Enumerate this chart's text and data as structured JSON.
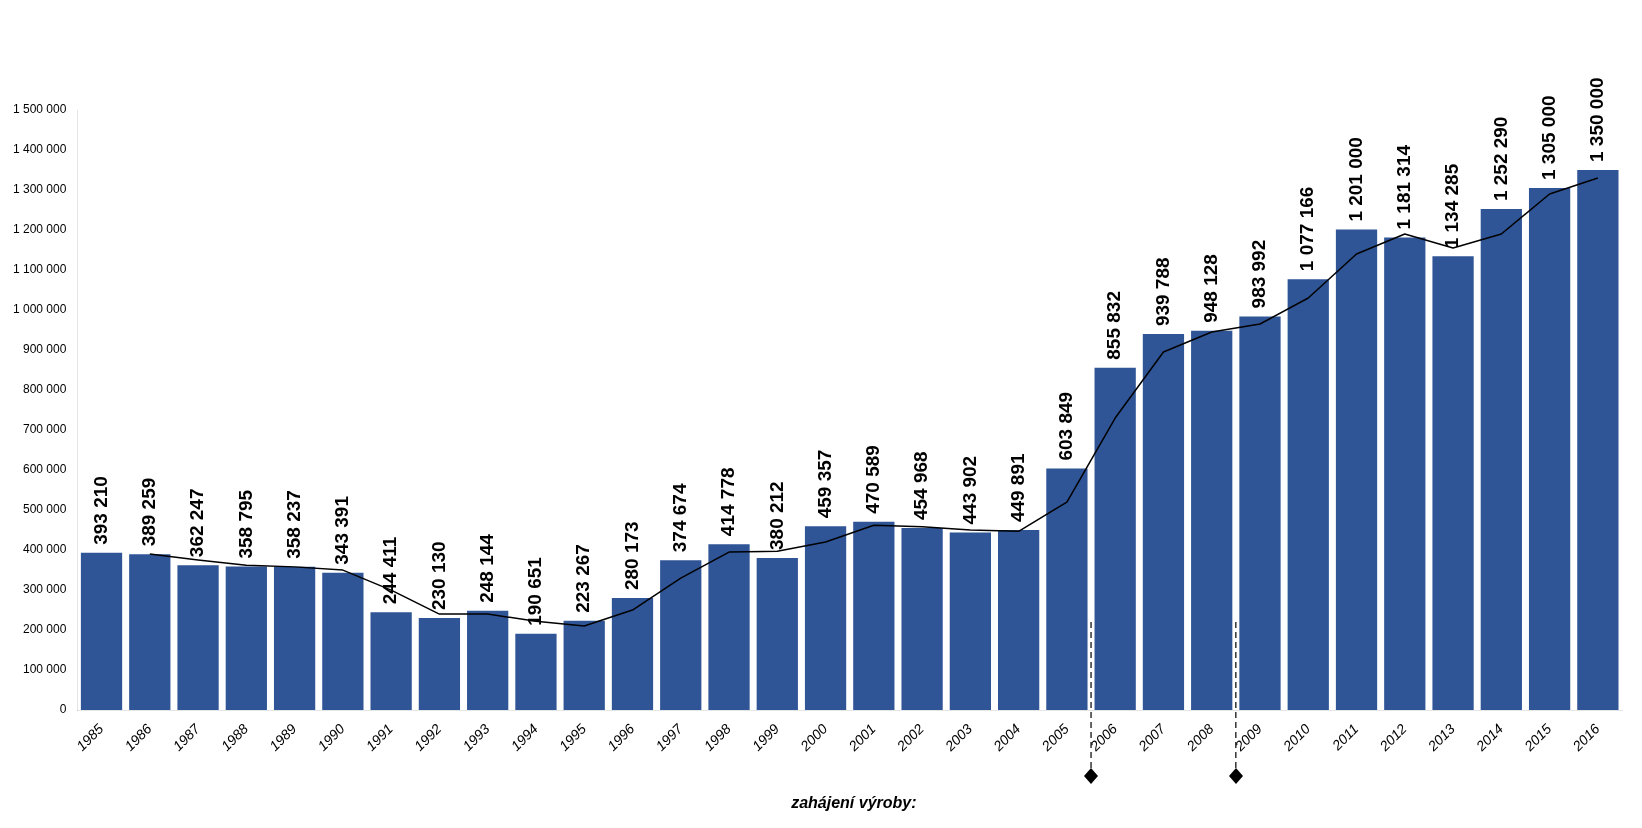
{
  "chart_data": {
    "type": "bar",
    "categories": [
      "1985",
      "1986",
      "1987",
      "1988",
      "1989",
      "1990",
      "1991",
      "1992",
      "1993",
      "1994",
      "1995",
      "1996",
      "1997",
      "1998",
      "1999",
      "2000",
      "2001",
      "2002",
      "2003",
      "2004",
      "2005",
      "2006",
      "2007",
      "2008",
      "2009",
      "2010",
      "2011",
      "2012",
      "2013",
      "2014",
      "2015",
      "2016"
    ],
    "series": [
      {
        "color": "#2f5597",
        "values": [
          393210,
          389259,
          362247,
          358795,
          358237,
          343391,
          244411,
          230130,
          248144,
          190651,
          223267,
          280173,
          374674,
          414778,
          380212,
          459357,
          470589,
          454968,
          443902,
          449891,
          603849,
          855832,
          939788,
          948128,
          983992,
          1077166,
          1201000,
          1181314,
          1134285,
          1252290,
          1305000,
          1350000
        ],
        "value_labels": [
          "393 210",
          "389 259",
          "362 247",
          "358 795",
          "358 237",
          "343 391",
          "244 411",
          "230 130",
          "248 144",
          "190 651",
          "223 267",
          "280 173",
          "374 674",
          "414 778",
          "380 212",
          "459 357",
          "470 589",
          "454 968",
          "443 902",
          "449 891",
          "603 849",
          "855 832",
          "939 788",
          "948 128",
          "983 992",
          "1 077 166",
          "1 201 000",
          "1 181 314",
          "1 134 285",
          "1 252 290",
          "1 305 000",
          "1 350 000"
        ]
      },
      {
        "type": "line",
        "color": "#000000",
        "values": [
          null,
          390000,
          375000,
          362000,
          358000,
          350000,
          300000,
          240000,
          240000,
          222000,
          210000,
          250000,
          330000,
          395000,
          397000,
          420000,
          462000,
          458000,
          450000,
          447000,
          520000,
          730000,
          895000,
          945000,
          965000,
          1030000,
          1140000,
          1190000,
          1155000,
          1190000,
          1290000,
          1330000
        ]
      }
    ],
    "ylim": [
      0,
      1500000
    ],
    "yticks": [
      {
        "value": 0,
        "label": "0"
      },
      {
        "value": 100000,
        "label": "100 000"
      },
      {
        "value": 200000,
        "label": "200 000"
      },
      {
        "value": 300000,
        "label": "300 000"
      },
      {
        "value": 400000,
        "label": "400 000"
      },
      {
        "value": 500000,
        "label": "500 000"
      },
      {
        "value": 600000,
        "label": "600 000"
      },
      {
        "value": 700000,
        "label": "700 000"
      },
      {
        "value": 800000,
        "label": "800 000"
      },
      {
        "value": 900000,
        "label": "900 000"
      },
      {
        "value": 1000000,
        "label": "1 000 000"
      },
      {
        "value": 1100000,
        "label": "1 100 000"
      },
      {
        "value": 1200000,
        "label": "1 200 000"
      },
      {
        "value": 1300000,
        "label": "1 300 000"
      },
      {
        "value": 1400000,
        "label": "1 400 000"
      },
      {
        "value": 1500000,
        "label": "1 500 000"
      }
    ],
    "ref_lines": [
      {
        "axis": "x",
        "value": "2006",
        "color": "#000000",
        "line_style": "dashed"
      },
      {
        "axis": "x",
        "value": "2009",
        "color": "#000000",
        "line_style": "dashed"
      }
    ],
    "annotations": [
      "zahájení výroby:"
    ],
    "grid": false,
    "legend": false
  }
}
